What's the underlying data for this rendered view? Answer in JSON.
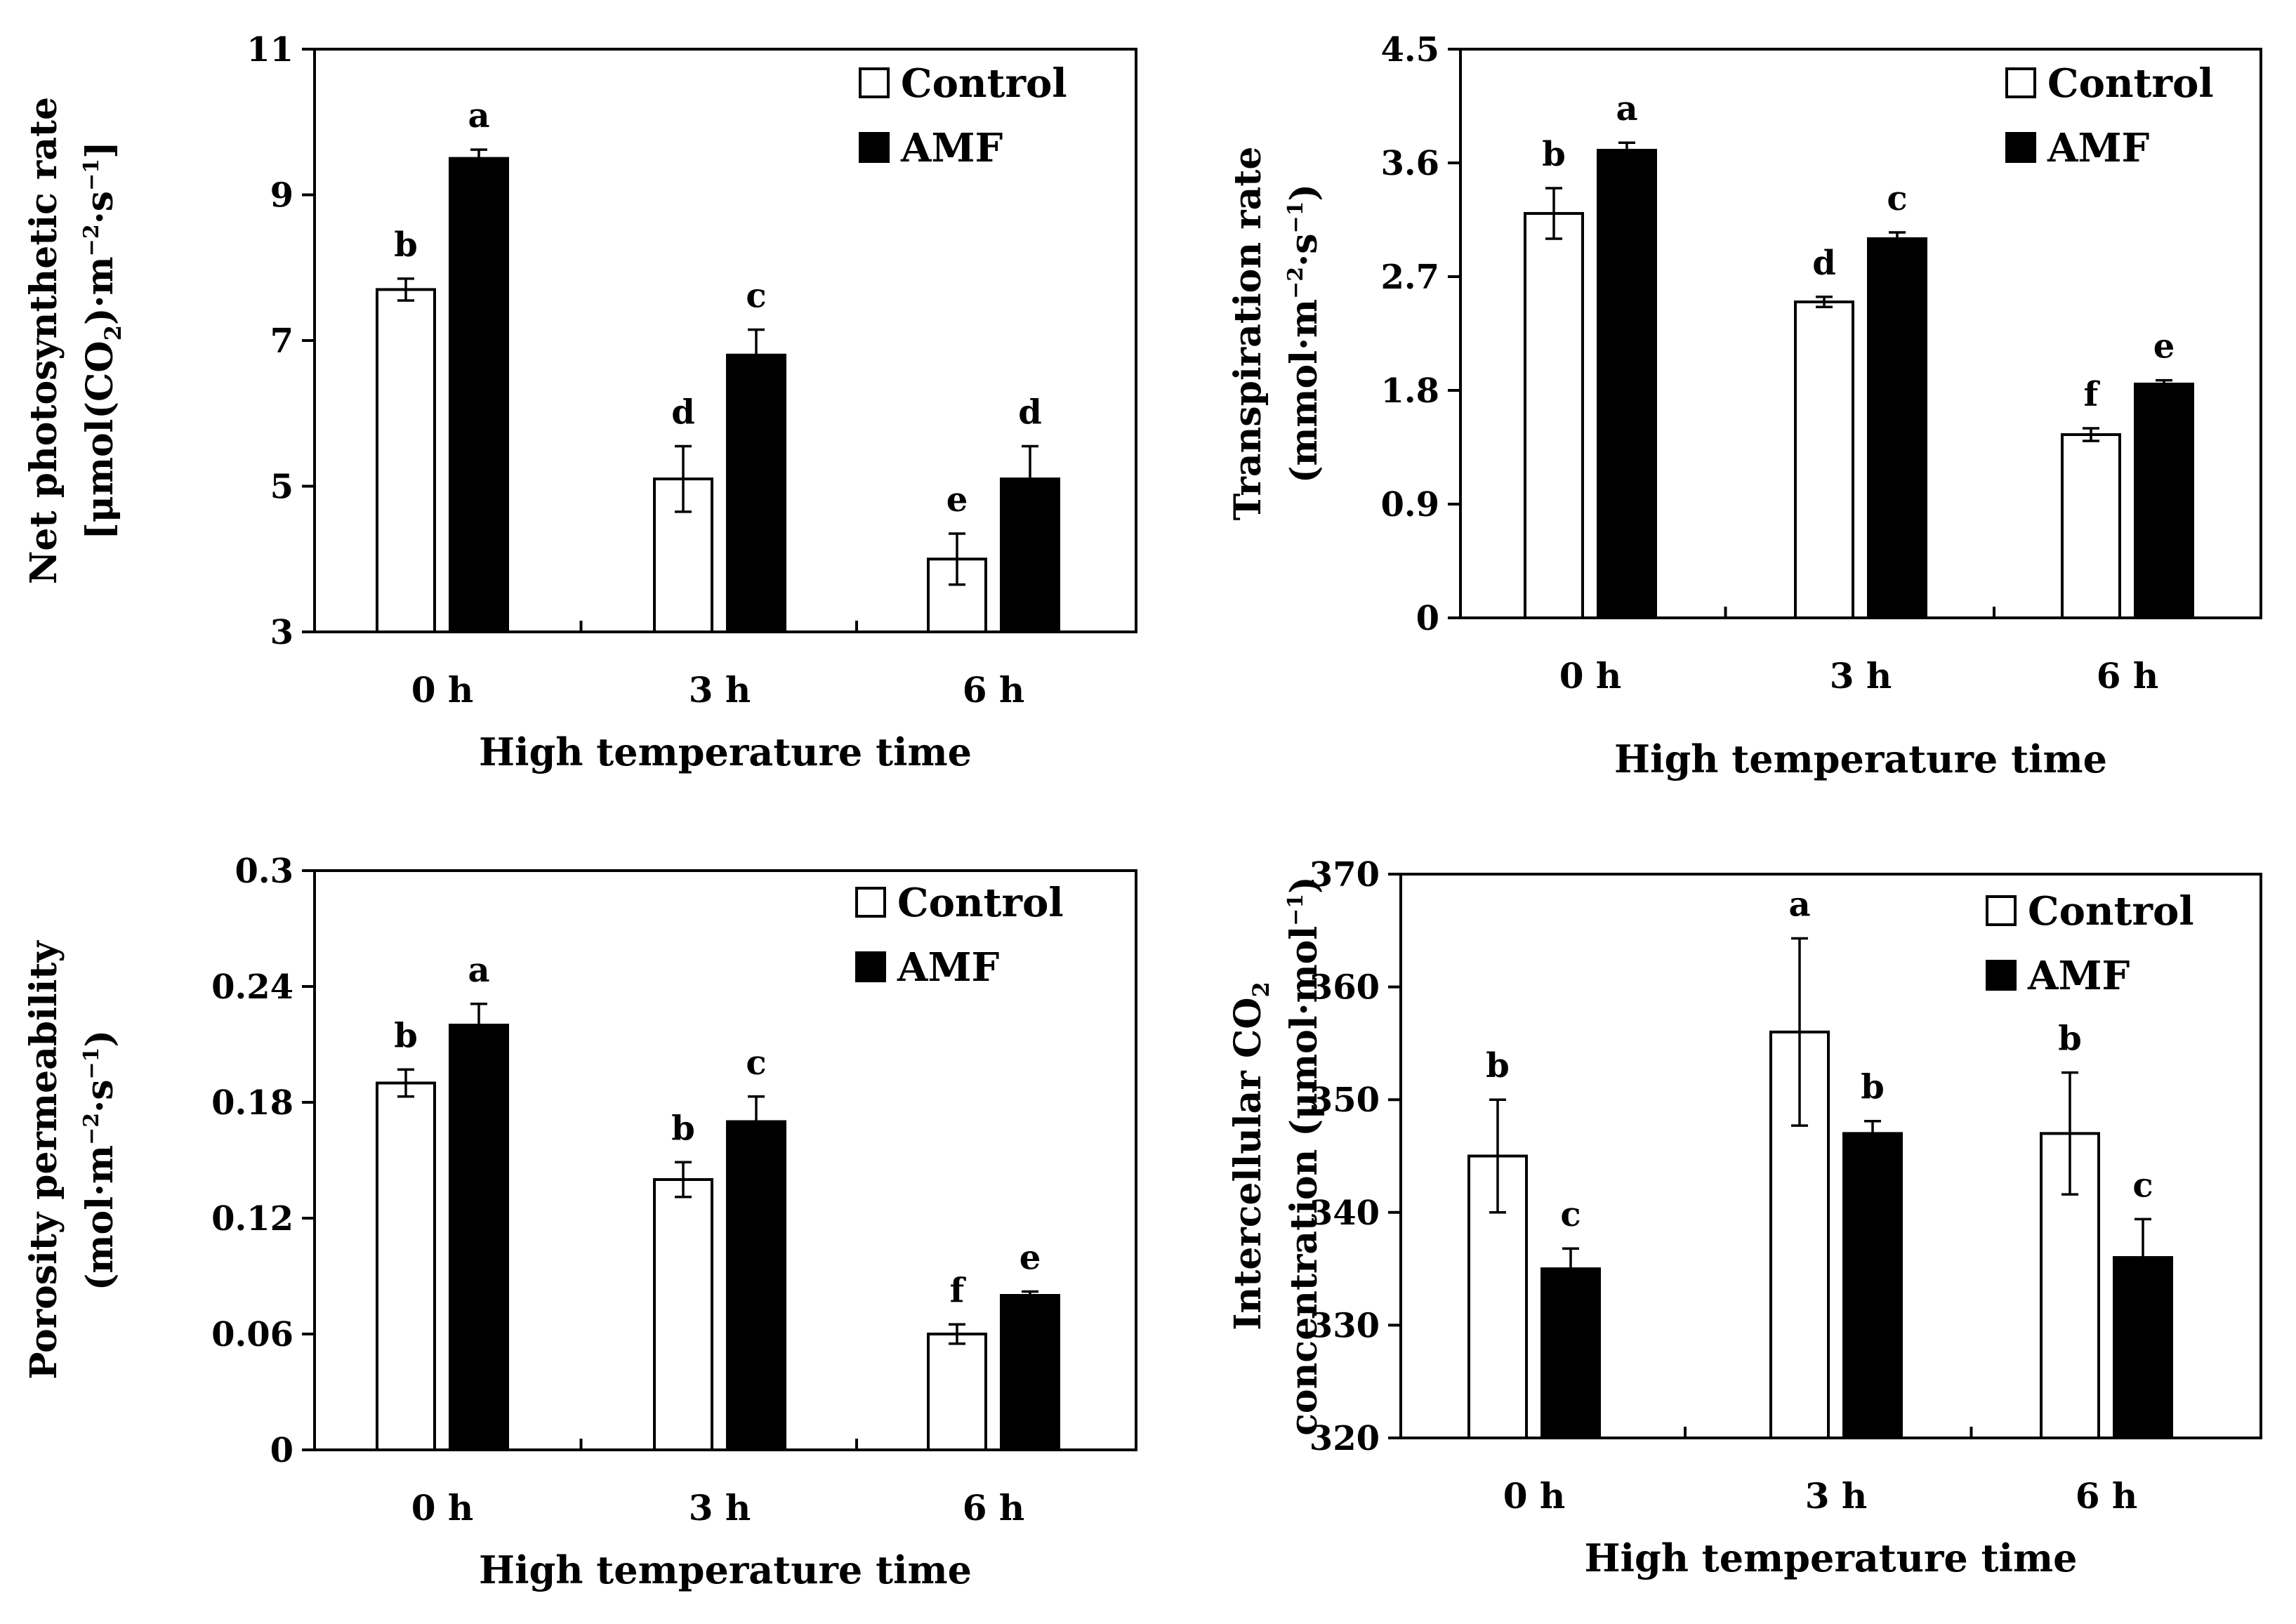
{
  "chart_data": [
    {
      "id": "p1",
      "type": "bar",
      "categories": [
        "0 h",
        "3 h",
        "6 h"
      ],
      "series": [
        {
          "name": "Control",
          "values": [
            7.7,
            5.1,
            4.0
          ],
          "errors": [
            0.15,
            0.45,
            0.35
          ]
        },
        {
          "name": "AMF",
          "values": [
            9.5,
            6.8,
            5.1
          ],
          "errors": [
            0.12,
            0.35,
            0.45
          ]
        }
      ],
      "letters": [
        [
          "b",
          "d",
          "e"
        ],
        [
          "a",
          "c",
          "d"
        ]
      ],
      "ylim": [
        3,
        11
      ],
      "yticks": [
        "3",
        "5",
        "7",
        "9",
        "11"
      ],
      "xlabel": "High temperature time",
      "ylabel": "Net photosynthetic rate",
      "ylabel2_parts": [
        [
          "[μmol(CO",
          ""
        ],
        [
          "2",
          "sub"
        ],
        [
          ")·m",
          ""
        ],
        [
          "−2",
          "sup"
        ],
        [
          "·s",
          ""
        ],
        [
          "−1",
          "sup"
        ],
        [
          "]",
          ""
        ]
      ],
      "legend": "top-right"
    },
    {
      "id": "p2",
      "type": "bar",
      "categories": [
        "0 h",
        "3 h",
        "6 h"
      ],
      "series": [
        {
          "name": "Control",
          "values": [
            3.2,
            2.5,
            1.45
          ],
          "errors": [
            0.2,
            0.04,
            0.05
          ]
        },
        {
          "name": "AMF",
          "values": [
            3.7,
            3.0,
            1.85
          ],
          "errors": [
            0.06,
            0.05,
            0.03
          ]
        }
      ],
      "letters": [
        [
          "b",
          "d",
          "f"
        ],
        [
          "a",
          "c",
          "e"
        ]
      ],
      "ylim": [
        0,
        4.5
      ],
      "yticks": [
        "0",
        "0.9",
        "1.8",
        "2.7",
        "3.6",
        "4.5"
      ],
      "xlabel": "High temperature time",
      "ylabel": "Transpiration rate",
      "ylabel2_parts": [
        [
          "(mmol·m",
          ""
        ],
        [
          "−2",
          "sup"
        ],
        [
          "·s",
          ""
        ],
        [
          "−1",
          "sup"
        ],
        [
          ")",
          ""
        ]
      ],
      "legend": "top-right"
    },
    {
      "id": "p3",
      "type": "bar",
      "categories": [
        "0 h",
        "3 h",
        "6 h"
      ],
      "series": [
        {
          "name": "Control",
          "values": [
            0.19,
            0.14,
            0.06
          ],
          "errors": [
            0.007,
            0.009,
            0.005
          ]
        },
        {
          "name": "AMF",
          "values": [
            0.22,
            0.17,
            0.08
          ],
          "errors": [
            0.011,
            0.013,
            0.002
          ]
        }
      ],
      "letters": [
        [
          "b",
          "b",
          "f"
        ],
        [
          "a",
          "c",
          "e"
        ]
      ],
      "ylim": [
        0,
        0.3
      ],
      "yticks": [
        "0",
        "0.06",
        "0.12",
        "0.18",
        "0.24",
        "0.3"
      ],
      "xlabel": "High temperature time",
      "ylabel": "Porosity permeability",
      "ylabel2_parts": [
        [
          "(mol·m",
          ""
        ],
        [
          "−2",
          "sup"
        ],
        [
          "·s",
          ""
        ],
        [
          "−1",
          "sup"
        ],
        [
          ")",
          ""
        ]
      ],
      "legend": "top-right"
    },
    {
      "id": "p4",
      "type": "bar",
      "categories": [
        "0 h",
        "3 h",
        "6 h"
      ],
      "series": [
        {
          "name": "Control",
          "values": [
            345,
            356,
            347
          ],
          "errors": [
            5,
            8.3,
            5.4
          ]
        },
        {
          "name": "AMF",
          "values": [
            335,
            347,
            336
          ],
          "errors": [
            1.8,
            1.1,
            3.4
          ]
        }
      ],
      "letters": [
        [
          "b",
          "a",
          "b"
        ],
        [
          "c",
          "b",
          "c"
        ]
      ],
      "ylim": [
        320,
        370
      ],
      "yticks": [
        "320",
        "330",
        "340",
        "350",
        "360",
        "370"
      ],
      "xlabel": "High temperature time",
      "ylabel_parts": [
        [
          "Intercellular CO",
          ""
        ],
        [
          "2",
          "sub"
        ]
      ],
      "ylabel2": "concentration (μmol·mol",
      "ylabel2_parts": [
        [
          "concentration (μmol·mol",
          ""
        ],
        [
          "−1",
          "sup"
        ],
        [
          ")",
          ""
        ]
      ],
      "legend": "top-right"
    }
  ]
}
